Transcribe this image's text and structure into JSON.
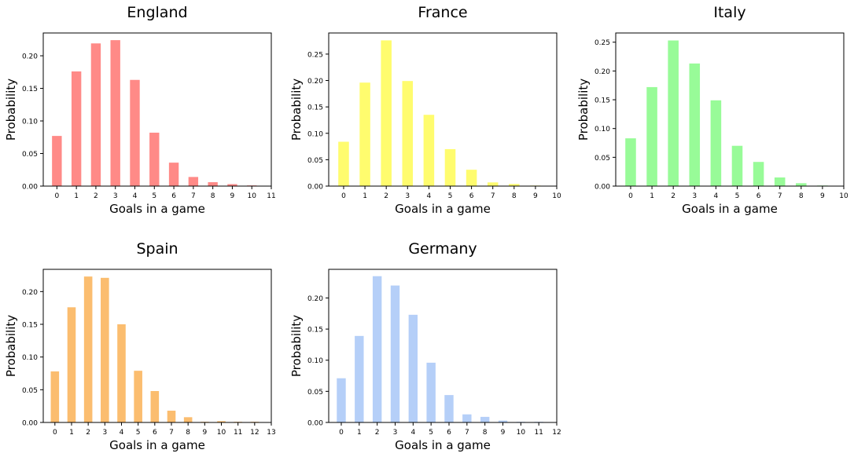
{
  "chart_data": [
    {
      "type": "bar",
      "title": "England",
      "xlabel": "Goals in a game",
      "ylabel": "Probability",
      "color": "#ff8a87",
      "categories": [
        "0",
        "1",
        "2",
        "3",
        "4",
        "5",
        "6",
        "7",
        "8",
        "9",
        "10"
      ],
      "values": [
        0.077,
        0.176,
        0.219,
        0.224,
        0.163,
        0.082,
        0.036,
        0.014,
        0.006,
        0.003,
        0.001
      ],
      "xticks": [
        "0",
        "1",
        "2",
        "3",
        "4",
        "5",
        "6",
        "7",
        "8",
        "9",
        "10",
        "11"
      ],
      "xlim": [
        -0.7,
        11
      ],
      "ylim": [
        0,
        0.235
      ],
      "yticks": [
        "0.00",
        "0.05",
        "0.10",
        "0.15",
        "0.20"
      ],
      "grid": false,
      "legend": "none"
    },
    {
      "type": "bar",
      "title": "France",
      "xlabel": "Goals in a game",
      "ylabel": "Probability",
      "color": "#fffc6e",
      "categories": [
        "0",
        "1",
        "2",
        "3",
        "4",
        "5",
        "6",
        "7",
        "8",
        "9"
      ],
      "values": [
        0.084,
        0.196,
        0.276,
        0.199,
        0.135,
        0.07,
        0.031,
        0.007,
        0.004,
        0.001
      ],
      "xticks": [
        "0",
        "1",
        "2",
        "3",
        "4",
        "5",
        "6",
        "7",
        "8",
        "9",
        "10"
      ],
      "xlim": [
        -0.7,
        10
      ],
      "ylim": [
        0,
        0.29
      ],
      "yticks": [
        "0.00",
        "0.05",
        "0.10",
        "0.15",
        "0.20",
        "0.25"
      ],
      "grid": false,
      "legend": "none"
    },
    {
      "type": "bar",
      "title": "Italy",
      "xlabel": "Goals in a game",
      "ylabel": "Probability",
      "color": "#98fb98",
      "categories": [
        "0",
        "1",
        "2",
        "3",
        "4",
        "5",
        "6",
        "7",
        "8",
        "9"
      ],
      "values": [
        0.083,
        0.172,
        0.253,
        0.213,
        0.149,
        0.07,
        0.042,
        0.015,
        0.005,
        0.001
      ],
      "xticks": [
        "0",
        "1",
        "2",
        "3",
        "4",
        "5",
        "6",
        "7",
        "8",
        "9",
        "10"
      ],
      "xlim": [
        -0.7,
        10
      ],
      "ylim": [
        0,
        0.266
      ],
      "yticks": [
        "0.00",
        "0.05",
        "0.10",
        "0.15",
        "0.20",
        "0.25"
      ],
      "grid": false,
      "legend": "none"
    },
    {
      "type": "bar",
      "title": "Spain",
      "xlabel": "Goals in a game",
      "ylabel": "Probability",
      "color": "#fbbd6f",
      "categories": [
        "0",
        "1",
        "2",
        "3",
        "4",
        "5",
        "6",
        "7",
        "8",
        "9",
        "10",
        "11",
        "12"
      ],
      "values": [
        0.078,
        0.176,
        0.223,
        0.221,
        0.15,
        0.079,
        0.048,
        0.018,
        0.008,
        0.001,
        0.002,
        0.001,
        0.001
      ],
      "xticks": [
        "0",
        "1",
        "2",
        "3",
        "4",
        "5",
        "6",
        "7",
        "8",
        "9",
        "10",
        "11",
        "12",
        "13"
      ],
      "xlim": [
        -0.7,
        13
      ],
      "ylim": [
        0,
        0.234
      ],
      "yticks": [
        "0.00",
        "0.05",
        "0.10",
        "0.15",
        "0.20"
      ],
      "grid": false,
      "legend": "none"
    },
    {
      "type": "bar",
      "title": "Germany",
      "xlabel": "Goals in a game",
      "ylabel": "Probability",
      "color": "#b5cff8",
      "categories": [
        "0",
        "1",
        "2",
        "3",
        "4",
        "5",
        "6",
        "7",
        "8",
        "9",
        "10",
        "11"
      ],
      "values": [
        0.071,
        0.139,
        0.235,
        0.22,
        0.173,
        0.096,
        0.044,
        0.013,
        0.009,
        0.003,
        0.001,
        0.001
      ],
      "xticks": [
        "0",
        "1",
        "2",
        "3",
        "4",
        "5",
        "6",
        "7",
        "8",
        "9",
        "10",
        "11",
        "12"
      ],
      "xlim": [
        -0.7,
        12
      ],
      "ylim": [
        0,
        0.246
      ],
      "yticks": [
        "0.00",
        "0.05",
        "0.10",
        "0.15",
        "0.20"
      ],
      "grid": false,
      "legend": "none"
    }
  ]
}
